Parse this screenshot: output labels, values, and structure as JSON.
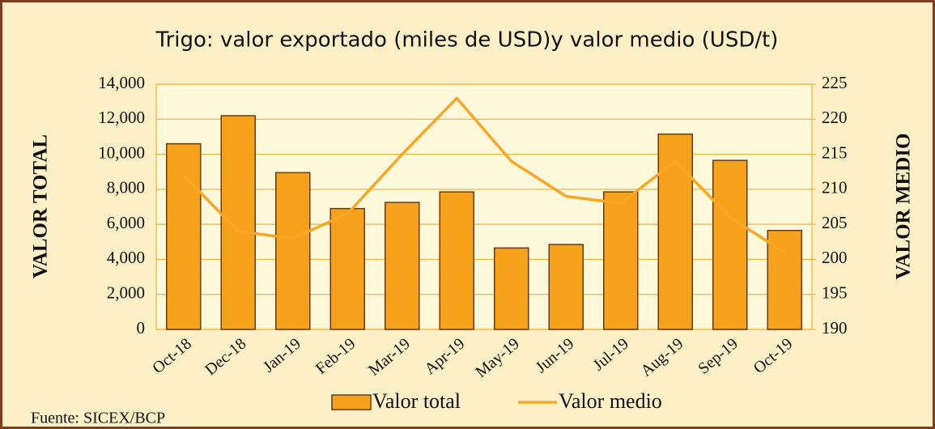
{
  "chart_data": {
    "type": "bar",
    "title": "Trigo: valor exportado (miles de USD)y valor medio (USD/t)",
    "ylabel": "VALOR TOTAL",
    "y2label": "VALOR MEDIO",
    "source": "Fuente: SICEX/BCP",
    "categories": [
      "Oct-18",
      "Dec-18",
      "Jan-19",
      "Feb-19",
      "Mar-19",
      "Apr-19",
      "May-19",
      "Jun-19",
      "Jul-19",
      "Aug-19",
      "Sep-19",
      "Oct-19"
    ],
    "series": [
      {
        "name": "Valor total",
        "type": "bar",
        "color": "#f7a21b",
        "values": [
          10600,
          12200,
          8950,
          6900,
          7250,
          7850,
          4650,
          4850,
          7850,
          11150,
          9650,
          5650
        ]
      },
      {
        "name": "Valor medio",
        "type": "line",
        "axis": "y2",
        "color": "#f9a825",
        "values": [
          212,
          204,
          203,
          206.5,
          215,
          223,
          214,
          209,
          208,
          214,
          206,
          201
        ]
      }
    ],
    "ylim": [
      0,
      14000
    ],
    "yticks": [
      0,
      {
        "value": 2000,
        "label": "2,000"
      },
      {
        "value": 4000,
        "label": "4,000"
      },
      {
        "value": 6000,
        "label": "6,000"
      },
      {
        "value": 8000,
        "label": "8,000"
      },
      {
        "value": 10000,
        "label": "10,000"
      },
      {
        "value": 12000,
        "label": "12,000"
      },
      {
        "value": 14000,
        "label": "14,000"
      }
    ],
    "y2lim": [
      190,
      225
    ],
    "y2ticks": [
      190,
      195,
      200,
      205,
      210,
      215,
      220,
      225
    ],
    "grid": true,
    "legend": "bottom"
  }
}
